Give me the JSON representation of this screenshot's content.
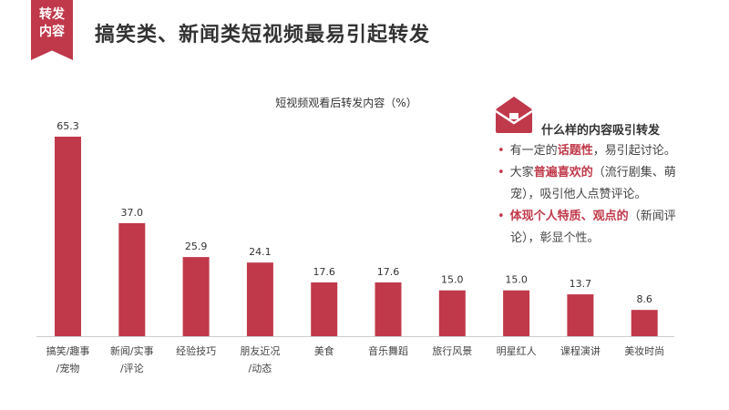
{
  "header": {
    "ribbon_line1": "转发",
    "ribbon_line2": "内容",
    "title": "搞笑类、新闻类短视频最易引起转发"
  },
  "sidebar": {
    "icon": "envelope-icon",
    "title": "什么样的内容吸引转发",
    "bullets": [
      {
        "pre": "有一定的",
        "highlight": "话题性",
        "post": "，易引起讨论。"
      },
      {
        "pre": "大家",
        "highlight": "普遍喜欢的",
        "post": "（流行剧集、萌",
        "post2": "宠），吸引他人点赞评论。"
      },
      {
        "pre": "",
        "highlight": "体现个人特质、观点的",
        "post": "（新闻评",
        "post2": "论），彰显个性。"
      }
    ]
  },
  "colors": {
    "accent": "#c0394b",
    "bar": "#c0394b",
    "axis": "#cccccc"
  },
  "chart_data": {
    "type": "bar",
    "title": "短视频观看后转发内容（%）",
    "xlabel": "",
    "ylabel": "",
    "categories": [
      [
        "搞笑/趣事",
        "/宠物"
      ],
      [
        "新闻/实事",
        "/评论"
      ],
      [
        "经验技巧"
      ],
      [
        "朋友近况",
        "/动态"
      ],
      [
        "美食"
      ],
      [
        "音乐舞蹈"
      ],
      [
        "旅行风景"
      ],
      [
        "明星红人"
      ],
      [
        "课程演讲"
      ],
      [
        "美妆时尚"
      ]
    ],
    "values": [
      65.3,
      37.0,
      25.9,
      24.1,
      17.6,
      17.6,
      15.0,
      15.0,
      13.7,
      8.6
    ],
    "value_labels": [
      "65.3",
      "37.0",
      "25.9",
      "24.1",
      "17.6",
      "17.6",
      "15.0",
      "15.0",
      "13.7",
      "8.6"
    ],
    "ylim": [
      0,
      70
    ],
    "grid": false
  }
}
